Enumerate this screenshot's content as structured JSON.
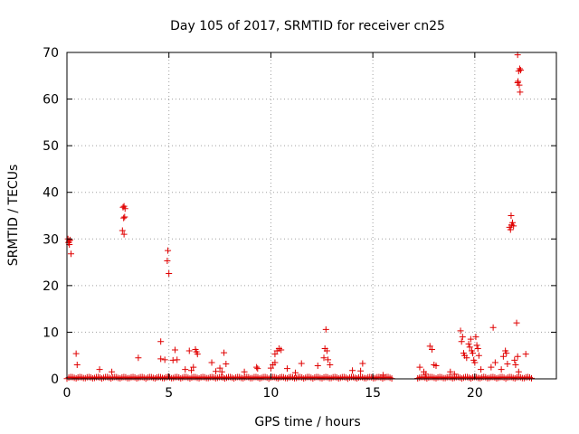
{
  "chart_data": {
    "type": "scatter",
    "title": "Day 105 of 2017, SRMTID for receiver cn25",
    "xlabel": "GPS time / hours",
    "ylabel": "SRMTID / TECUs",
    "xlim": [
      0,
      24
    ],
    "ylim": [
      0,
      70
    ],
    "xticks": [
      0,
      5,
      10,
      15,
      20
    ],
    "yticks": [
      0,
      10,
      20,
      30,
      40,
      50,
      60,
      70
    ],
    "grid": true,
    "marker": "+",
    "color": "#e00000",
    "baseline_segments": [
      [
        0,
        16
      ],
      [
        17.2,
        22.8
      ]
    ],
    "series": [
      {
        "name": "SRMTID",
        "points": [
          [
            0.05,
            30.0
          ],
          [
            0.1,
            29.5
          ],
          [
            0.12,
            28.8
          ],
          [
            0.15,
            29.8
          ],
          [
            0.2,
            26.8
          ],
          [
            0.08,
            29.2
          ],
          [
            0.45,
            5.4
          ],
          [
            0.5,
            3.0
          ],
          [
            1.6,
            2.0
          ],
          [
            2.2,
            1.5
          ],
          [
            2.75,
            36.8
          ],
          [
            2.8,
            37.0
          ],
          [
            2.85,
            36.5
          ],
          [
            2.78,
            34.5
          ],
          [
            2.83,
            34.7
          ],
          [
            2.72,
            31.8
          ],
          [
            2.8,
            31.0
          ],
          [
            3.5,
            4.5
          ],
          [
            4.6,
            8.0
          ],
          [
            4.6,
            4.3
          ],
          [
            4.8,
            4.1
          ],
          [
            4.95,
            27.5
          ],
          [
            4.92,
            25.3
          ],
          [
            5.0,
            22.6
          ],
          [
            5.3,
            6.2
          ],
          [
            5.2,
            4.0
          ],
          [
            5.4,
            4.1
          ],
          [
            5.8,
            2.0
          ],
          [
            6.0,
            6.0
          ],
          [
            6.2,
            2.5
          ],
          [
            6.3,
            6.3
          ],
          [
            6.35,
            5.8
          ],
          [
            6.4,
            5.3
          ],
          [
            6.1,
            1.8
          ],
          [
            7.1,
            3.5
          ],
          [
            7.3,
            1.6
          ],
          [
            7.5,
            2.3
          ],
          [
            7.7,
            5.6
          ],
          [
            7.8,
            3.2
          ],
          [
            7.6,
            1.5
          ],
          [
            8.7,
            1.5
          ],
          [
            9.3,
            2.5
          ],
          [
            9.35,
            2.2
          ],
          [
            10.0,
            2.3
          ],
          [
            10.1,
            3.0
          ],
          [
            10.2,
            5.3
          ],
          [
            10.3,
            6.0
          ],
          [
            10.4,
            6.5
          ],
          [
            10.5,
            6.2
          ],
          [
            10.2,
            3.5
          ],
          [
            10.8,
            2.2
          ],
          [
            11.2,
            1.3
          ],
          [
            11.5,
            3.3
          ],
          [
            12.3,
            2.8
          ],
          [
            12.6,
            4.5
          ],
          [
            12.65,
            6.5
          ],
          [
            12.7,
            10.6
          ],
          [
            12.75,
            6.0
          ],
          [
            12.8,
            4.1
          ],
          [
            12.9,
            3.0
          ],
          [
            14.0,
            1.8
          ],
          [
            14.5,
            3.3
          ],
          [
            14.4,
            1.7
          ],
          [
            15.5,
            0.8
          ],
          [
            17.3,
            2.5
          ],
          [
            17.5,
            1.5
          ],
          [
            17.6,
            1.0
          ],
          [
            17.8,
            7.0
          ],
          [
            17.9,
            6.3
          ],
          [
            18.0,
            3.0
          ],
          [
            18.1,
            2.8
          ],
          [
            18.8,
            1.5
          ],
          [
            19.0,
            1.0
          ],
          [
            19.3,
            10.3
          ],
          [
            19.4,
            9.0
          ],
          [
            19.35,
            8.0
          ],
          [
            19.45,
            5.5
          ],
          [
            19.5,
            5.0
          ],
          [
            19.6,
            4.5
          ],
          [
            19.7,
            7.5
          ],
          [
            19.75,
            6.8
          ],
          [
            19.8,
            8.5
          ],
          [
            19.85,
            6.0
          ],
          [
            19.9,
            5.5
          ],
          [
            19.95,
            4.0
          ],
          [
            20.0,
            3.5
          ],
          [
            20.05,
            9.0
          ],
          [
            20.1,
            7.2
          ],
          [
            20.15,
            6.5
          ],
          [
            20.2,
            5.0
          ],
          [
            20.3,
            2.0
          ],
          [
            20.8,
            2.5
          ],
          [
            20.9,
            11.0
          ],
          [
            21.0,
            3.5
          ],
          [
            21.3,
            2.0
          ],
          [
            21.4,
            4.8
          ],
          [
            21.5,
            6.0
          ],
          [
            21.55,
            5.5
          ],
          [
            21.6,
            3.2
          ],
          [
            21.7,
            32.5
          ],
          [
            21.75,
            32.0
          ],
          [
            21.8,
            33.0
          ],
          [
            21.85,
            33.5
          ],
          [
            21.9,
            32.8
          ],
          [
            21.78,
            35.0
          ],
          [
            21.95,
            4.0
          ],
          [
            22.0,
            3.0
          ],
          [
            22.05,
            12.0
          ],
          [
            22.1,
            4.8
          ],
          [
            22.15,
            1.5
          ],
          [
            22.1,
            69.5
          ],
          [
            22.15,
            66.0
          ],
          [
            22.2,
            66.5
          ],
          [
            22.25,
            66.2
          ],
          [
            22.1,
            63.5
          ],
          [
            22.18,
            63.0
          ],
          [
            22.22,
            61.5
          ],
          [
            22.12,
            63.8
          ],
          [
            22.5,
            5.3
          ]
        ]
      }
    ]
  }
}
